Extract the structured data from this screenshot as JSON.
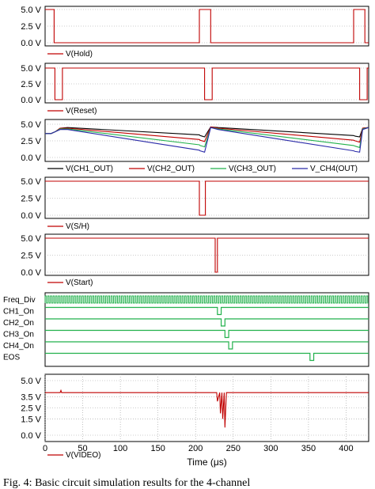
{
  "chart_data": [
    {
      "type": "line",
      "yticks": [
        "5.0 V",
        "2.5 V",
        "0.0 V"
      ],
      "ylim": [
        0,
        5
      ],
      "x_range_us": [
        0,
        430
      ],
      "series": [
        {
          "name": "V(Hold)",
          "color": "#c00000",
          "points": [
            [
              0,
              5
            ],
            [
              12,
              5
            ],
            [
              12,
              0
            ],
            [
              205,
              0
            ],
            [
              205,
              5
            ],
            [
              220,
              5
            ],
            [
              220,
              0
            ],
            [
              410,
              0
            ],
            [
              410,
              5
            ],
            [
              425,
              5
            ],
            [
              425,
              0
            ],
            [
              430,
              0
            ]
          ]
        }
      ]
    },
    {
      "type": "line",
      "yticks": [
        "5.0 V",
        "2.5 V",
        "0.0 V"
      ],
      "ylim": [
        0,
        5
      ],
      "x_range_us": [
        0,
        430
      ],
      "series": [
        {
          "name": "V(Reset)",
          "color": "#c00000",
          "points": [
            [
              0,
              5
            ],
            [
              13,
              5
            ],
            [
              13,
              0
            ],
            [
              23,
              0
            ],
            [
              23,
              5
            ],
            [
              212,
              5
            ],
            [
              212,
              0
            ],
            [
              222,
              0
            ],
            [
              222,
              5
            ],
            [
              418,
              5
            ],
            [
              418,
              0
            ],
            [
              428,
              0
            ],
            [
              428,
              5
            ],
            [
              430,
              5
            ]
          ]
        }
      ]
    },
    {
      "type": "line",
      "yticks": [
        "5.0 V",
        "2.5 V",
        "0.0 V"
      ],
      "ylim": [
        0,
        5
      ],
      "x_range_us": [
        0,
        430
      ],
      "series": [
        {
          "name": "V(CH1_OUT)",
          "color": "#000000",
          "points": [
            [
              0,
              3.6
            ],
            [
              8,
              3.6
            ],
            [
              14,
              3.9
            ],
            [
              20,
              4.4
            ],
            [
              30,
              4.5
            ],
            [
              205,
              3.4
            ],
            [
              206,
              3.3
            ],
            [
              212,
              3.1
            ],
            [
              220,
              4.6
            ],
            [
              230,
              4.5
            ],
            [
              410,
              3.3
            ],
            [
              412,
              3.2
            ],
            [
              418,
              3.1
            ],
            [
              422,
              4.4
            ],
            [
              430,
              4.5
            ]
          ]
        },
        {
          "name": "V(CH2_OUT)",
          "color": "#c00000",
          "points": [
            [
              0,
              3.6
            ],
            [
              8,
              3.6
            ],
            [
              14,
              3.9
            ],
            [
              20,
              4.4
            ],
            [
              30,
              4.4
            ],
            [
              205,
              2.7
            ],
            [
              206,
              2.6
            ],
            [
              212,
              2.4
            ],
            [
              220,
              4.6
            ],
            [
              230,
              4.4
            ],
            [
              410,
              2.6
            ],
            [
              412,
              2.5
            ],
            [
              418,
              2.3
            ],
            [
              422,
              4.4
            ],
            [
              430,
              4.5
            ]
          ]
        },
        {
          "name": "V(CH3_OUT)",
          "color": "#22b14c",
          "points": [
            [
              0,
              3.6
            ],
            [
              8,
              3.6
            ],
            [
              14,
              3.9
            ],
            [
              20,
              4.3
            ],
            [
              30,
              4.3
            ],
            [
              205,
              1.9
            ],
            [
              206,
              1.8
            ],
            [
              212,
              1.6
            ],
            [
              220,
              4.5
            ],
            [
              230,
              4.3
            ],
            [
              410,
              1.8
            ],
            [
              412,
              1.7
            ],
            [
              418,
              1.5
            ],
            [
              422,
              4.3
            ],
            [
              430,
              4.5
            ]
          ]
        },
        {
          "name": "V_CH4(OUT)",
          "color": "#2a2aa8",
          "points": [
            [
              0,
              3.6
            ],
            [
              8,
              3.6
            ],
            [
              14,
              3.9
            ],
            [
              20,
              4.2
            ],
            [
              30,
              4.2
            ],
            [
              205,
              1.1
            ],
            [
              206,
              1.0
            ],
            [
              212,
              0.8
            ],
            [
              220,
              4.5
            ],
            [
              230,
              4.2
            ],
            [
              410,
              1.0
            ],
            [
              412,
              0.9
            ],
            [
              418,
              0.8
            ],
            [
              422,
              4.2
            ],
            [
              430,
              4.5
            ]
          ]
        }
      ]
    },
    {
      "type": "line",
      "yticks": [
        "5.0 V",
        "2.5 V",
        "0.0 V"
      ],
      "ylim": [
        0,
        5
      ],
      "x_range_us": [
        0,
        430
      ],
      "series": [
        {
          "name": "V(S/H)",
          "color": "#c00000",
          "points": [
            [
              0,
              5
            ],
            [
              205,
              5
            ],
            [
              205,
              0
            ],
            [
              213,
              0
            ],
            [
              213,
              5
            ],
            [
              430,
              5
            ]
          ]
        }
      ]
    },
    {
      "type": "line",
      "yticks": [
        "5.0 V",
        "2.5 V",
        "0.0 V"
      ],
      "ylim": [
        0,
        5
      ],
      "x_range_us": [
        0,
        430
      ],
      "series": [
        {
          "name": "V(Start)",
          "color": "#c00000",
          "points": [
            [
              0,
              5
            ],
            [
              226,
              5
            ],
            [
              226,
              0
            ],
            [
              229,
              0
            ],
            [
              229,
              5
            ],
            [
              430,
              5
            ]
          ]
        }
      ]
    },
    {
      "type": "digital",
      "x_range_us": [
        0,
        430
      ],
      "color": "#22b14c",
      "clock": {
        "name": "Freq_Div",
        "period_us": 3.5
      },
      "lines": [
        {
          "name": "CH1_On",
          "low": [
            [
              229,
              234
            ]
          ]
        },
        {
          "name": "CH2_On",
          "low": [
            [
              234,
              239
            ]
          ]
        },
        {
          "name": "CH3_On",
          "low": [
            [
              239,
              244
            ]
          ]
        },
        {
          "name": "CH4_On",
          "low": [
            [
              244,
              249
            ]
          ]
        },
        {
          "name": "EOS",
          "low": [
            [
              352,
              357
            ]
          ]
        }
      ]
    },
    {
      "type": "line",
      "yticks": [
        "5.0 V",
        "3.5 V",
        "2.5 V",
        "1.5 V",
        "0.0 V"
      ],
      "ylim": [
        0,
        5
      ],
      "x_range_us": [
        0,
        430
      ],
      "xticks": [
        "0",
        "50",
        "100",
        "150",
        "200",
        "250",
        "300",
        "350",
        "400"
      ],
      "xlabel": "Time (μs)",
      "series": [
        {
          "name": "V(VIDEO)",
          "color": "#c00000",
          "points": [
            [
              0,
              3.9
            ],
            [
              20,
              3.9
            ],
            [
              21,
              4.1
            ],
            [
              22,
              3.9
            ],
            [
              228,
              3.9
            ],
            [
              229,
              3.1
            ],
            [
              232,
              3.9
            ],
            [
              233,
              2.0
            ],
            [
              235,
              3.9
            ],
            [
              236,
              1.5
            ],
            [
              238,
              3.9
            ],
            [
              239,
              0.7
            ],
            [
              241,
              3.9
            ],
            [
              430,
              3.9
            ]
          ]
        }
      ]
    }
  ],
  "caption": "Fig. 4: Basic circuit simulation results for the 4-channel"
}
